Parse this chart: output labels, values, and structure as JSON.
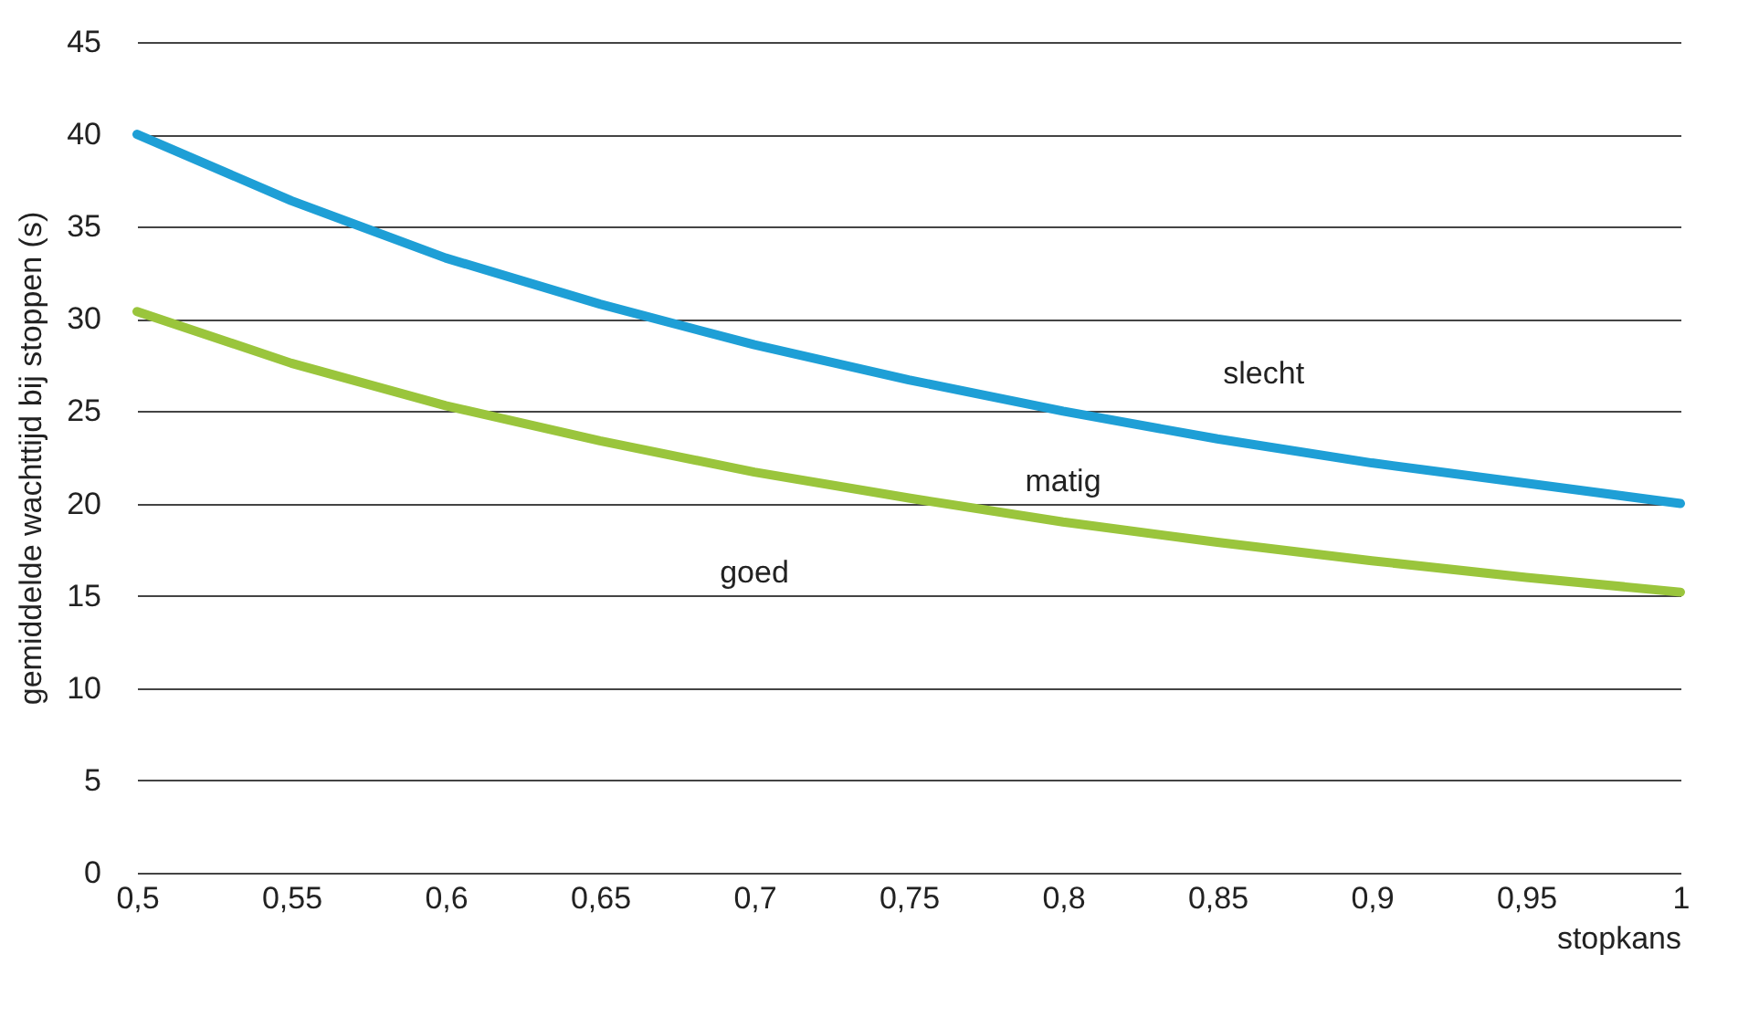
{
  "chart_data": {
    "type": "line",
    "xlabel": "stopkans",
    "ylabel": "gemiddelde wachttijd bij stoppen (s)",
    "x": [
      0.5,
      0.55,
      0.6,
      0.65,
      0.7,
      0.75,
      0.8,
      0.85,
      0.9,
      0.95,
      1
    ],
    "series": [
      {
        "color": "#1e9fd6",
        "values": [
          40,
          36.4,
          33.3,
          30.8,
          28.6,
          26.7,
          25,
          23.5,
          22.2,
          21.1,
          20
        ]
      },
      {
        "color": "#9ac53c",
        "values": [
          30.4,
          27.6,
          25.3,
          23.4,
          21.7,
          20.3,
          19,
          17.9,
          16.9,
          16,
          15.2
        ]
      }
    ],
    "xlim": [
      0.5,
      1
    ],
    "ylim": [
      0,
      45
    ],
    "xticks": [
      {
        "value": 0.5,
        "label": "0,5"
      },
      {
        "value": 0.55,
        "label": "0,55"
      },
      {
        "value": 0.6,
        "label": "0,6"
      },
      {
        "value": 0.65,
        "label": "0,65"
      },
      {
        "value": 0.7,
        "label": "0,7"
      },
      {
        "value": 0.75,
        "label": "0,75"
      },
      {
        "value": 0.8,
        "label": "0,8"
      },
      {
        "value": 0.85,
        "label": "0,85"
      },
      {
        "value": 0.9,
        "label": "0,9"
      },
      {
        "value": 0.95,
        "label": "0,95"
      },
      {
        "value": 1,
        "label": "1"
      }
    ],
    "yticks": [
      0,
      5,
      10,
      15,
      20,
      25,
      30,
      35,
      40,
      45
    ],
    "grid": "y",
    "marker": "none",
    "line_style": "solid",
    "annotations": [
      "slecht",
      "matig",
      "goed"
    ]
  }
}
